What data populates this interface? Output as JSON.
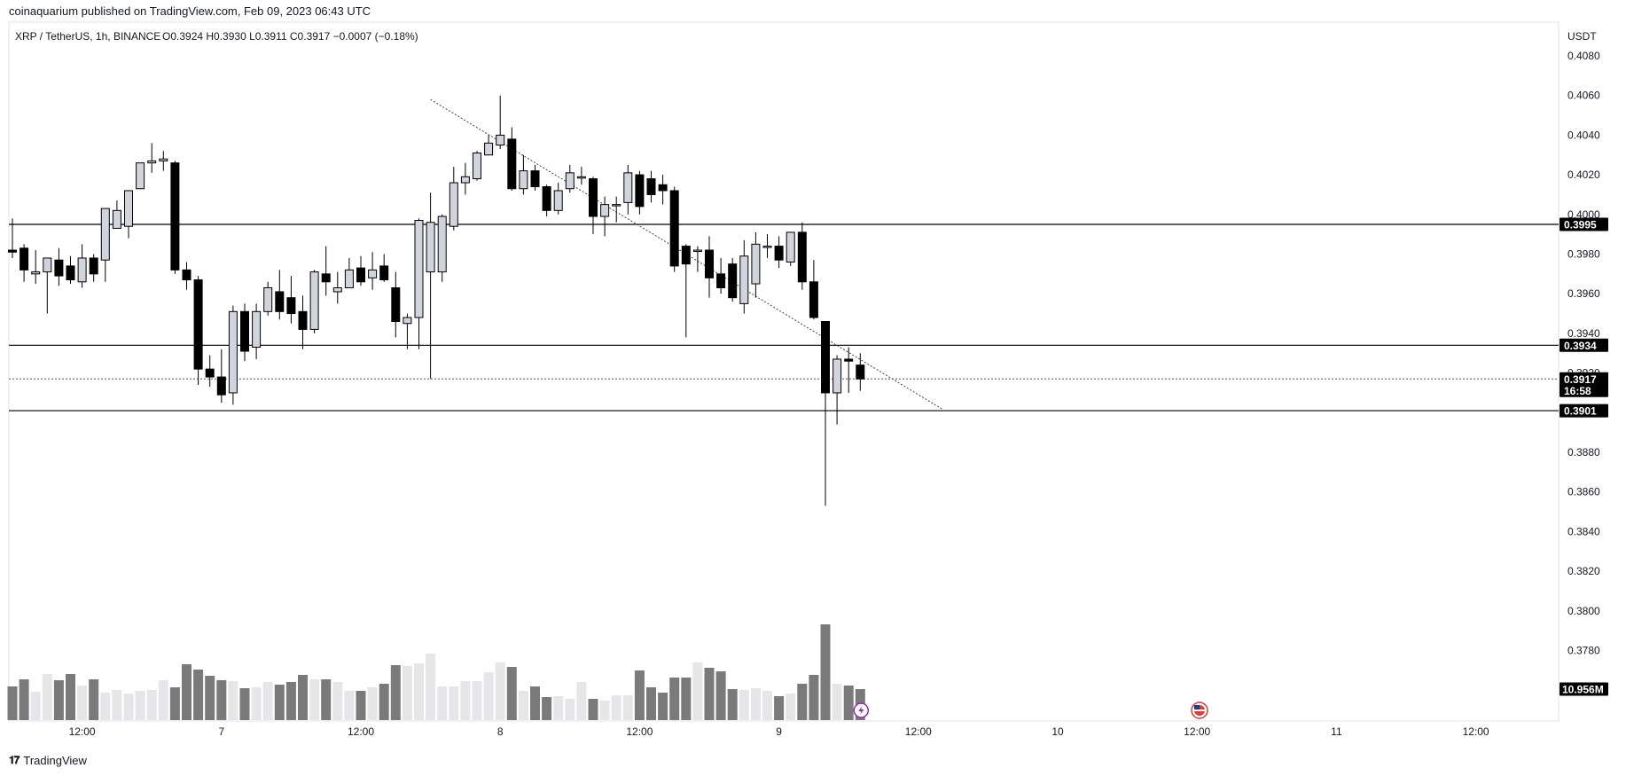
{
  "header": {
    "published": "coinaquarium published on TradingView.com, Feb 09, 2023 06:43 UTC"
  },
  "footer": {
    "brand": "TradingView",
    "logo": "tv-logo-icon"
  },
  "chart_data": {
    "type": "candlestick",
    "symbol": "XRP / TetherUS, 1h, BINANCE",
    "ohlc_label": "O0.3924 H0.3930 L0.3911 C0.3917 −0.0007 (−0.18%)",
    "currency": "USDT",
    "ylim": [
      0.3756,
      0.4085
    ],
    "y_ticks": [
      0.408,
      0.406,
      0.404,
      0.402,
      0.4,
      0.398,
      0.396,
      0.394,
      0.392,
      0.388,
      0.386,
      0.384,
      0.382,
      0.38,
      0.378,
      0.376
    ],
    "y_tick_labels": [
      "0.4080",
      "0.4060",
      "0.4040",
      "0.4020",
      "0.4000",
      "0.3980",
      "0.3960",
      "0.3940",
      "0.3920",
      "0.3880",
      "0.3860",
      "0.3840",
      "0.3820",
      "0.3800",
      "0.3780",
      "0.3760"
    ],
    "x_labels": [
      "12:00",
      "7",
      "12:00",
      "8",
      "12:00",
      "9",
      "12:00",
      "10",
      "12:00",
      "11",
      "12:00"
    ],
    "x_label_index": [
      6,
      18,
      30,
      42,
      54,
      66,
      78,
      90,
      102,
      114,
      126
    ],
    "horizontal_levels": [
      {
        "value": 0.3995,
        "label": "0.3995"
      },
      {
        "value": 0.3934,
        "label": "0.3934"
      },
      {
        "value": 0.3901,
        "label": "0.3901"
      }
    ],
    "current_price": {
      "value": 0.3917,
      "label": "0.3917",
      "countdown": "16:58"
    },
    "volume_label": "10.956M",
    "trendline": {
      "start": {
        "index": 36,
        "price": 0.4058
      },
      "end": {
        "index": 80,
        "price": 0.3902
      }
    },
    "colors": {
      "up": "#d1d4dc",
      "up_border": "#000000",
      "down": "#000000",
      "line": "#000000",
      "vol_up": "#e6e6e9",
      "vol_down": "#7a7a7a",
      "tag_bg": "#000000",
      "text": "#131722",
      "grid": "#ffffff"
    },
    "candles": [
      {
        "o": 0.3982,
        "h": 0.3998,
        "l": 0.3978,
        "c": 0.3981
      },
      {
        "o": 0.3983,
        "h": 0.3985,
        "l": 0.3966,
        "c": 0.3972
      },
      {
        "o": 0.397,
        "h": 0.3982,
        "l": 0.3965,
        "c": 0.3971
      },
      {
        "o": 0.3971,
        "h": 0.3978,
        "l": 0.395,
        "c": 0.3978
      },
      {
        "o": 0.3977,
        "h": 0.3983,
        "l": 0.3964,
        "c": 0.3969
      },
      {
        "o": 0.3974,
        "h": 0.3979,
        "l": 0.3965,
        "c": 0.3967
      },
      {
        "o": 0.3966,
        "h": 0.3985,
        "l": 0.3963,
        "c": 0.3978
      },
      {
        "o": 0.3978,
        "h": 0.398,
        "l": 0.3966,
        "c": 0.397
      },
      {
        "o": 0.3977,
        "h": 0.4003,
        "l": 0.3966,
        "c": 0.4003
      },
      {
        "o": 0.3993,
        "h": 0.4007,
        "l": 0.3993,
        "c": 0.4002
      },
      {
        "o": 0.3994,
        "h": 0.4011,
        "l": 0.3988,
        "c": 0.4012
      },
      {
        "o": 0.4013,
        "h": 0.4026,
        "l": 0.4013,
        "c": 0.4026
      },
      {
        "o": 0.4026,
        "h": 0.4036,
        "l": 0.4021,
        "c": 0.4027
      },
      {
        "o": 0.4027,
        "h": 0.4032,
        "l": 0.4022,
        "c": 0.4028
      },
      {
        "o": 0.4026,
        "h": 0.4027,
        "l": 0.397,
        "c": 0.3972
      },
      {
        "o": 0.3972,
        "h": 0.3976,
        "l": 0.3962,
        "c": 0.3967
      },
      {
        "o": 0.3967,
        "h": 0.3969,
        "l": 0.3914,
        "c": 0.3922
      },
      {
        "o": 0.3922,
        "h": 0.3929,
        "l": 0.3913,
        "c": 0.3918
      },
      {
        "o": 0.3918,
        "h": 0.3932,
        "l": 0.3905,
        "c": 0.3909
      },
      {
        "o": 0.391,
        "h": 0.3954,
        "l": 0.3904,
        "c": 0.3951
      },
      {
        "o": 0.3951,
        "h": 0.3955,
        "l": 0.3926,
        "c": 0.3931
      },
      {
        "o": 0.3933,
        "h": 0.3955,
        "l": 0.3927,
        "c": 0.3951
      },
      {
        "o": 0.3951,
        "h": 0.3966,
        "l": 0.3949,
        "c": 0.3963
      },
      {
        "o": 0.3961,
        "h": 0.3972,
        "l": 0.3947,
        "c": 0.3951
      },
      {
        "o": 0.3958,
        "h": 0.3969,
        "l": 0.3945,
        "c": 0.395
      },
      {
        "o": 0.3951,
        "h": 0.3959,
        "l": 0.3932,
        "c": 0.3942
      },
      {
        "o": 0.3942,
        "h": 0.3972,
        "l": 0.394,
        "c": 0.3971
      },
      {
        "o": 0.397,
        "h": 0.3984,
        "l": 0.3959,
        "c": 0.3966
      },
      {
        "o": 0.3961,
        "h": 0.3971,
        "l": 0.3955,
        "c": 0.3963
      },
      {
        "o": 0.3963,
        "h": 0.3978,
        "l": 0.3963,
        "c": 0.3972
      },
      {
        "o": 0.3973,
        "h": 0.3979,
        "l": 0.3964,
        "c": 0.3966
      },
      {
        "o": 0.3968,
        "h": 0.3981,
        "l": 0.3962,
        "c": 0.3972
      },
      {
        "o": 0.3974,
        "h": 0.398,
        "l": 0.3966,
        "c": 0.3967
      },
      {
        "o": 0.3963,
        "h": 0.3971,
        "l": 0.3938,
        "c": 0.3946
      },
      {
        "o": 0.3945,
        "h": 0.395,
        "l": 0.3932,
        "c": 0.3948
      },
      {
        "o": 0.3948,
        "h": 0.3998,
        "l": 0.3932,
        "c": 0.3997
      },
      {
        "o": 0.3971,
        "h": 0.4011,
        "l": 0.3917,
        "c": 0.3996
      },
      {
        "o": 0.3971,
        "h": 0.4,
        "l": 0.3966,
        "c": 0.3999
      },
      {
        "o": 0.3994,
        "h": 0.4024,
        "l": 0.3992,
        "c": 0.4016
      },
      {
        "o": 0.4016,
        "h": 0.4026,
        "l": 0.401,
        "c": 0.4019
      },
      {
        "o": 0.4018,
        "h": 0.4032,
        "l": 0.4017,
        "c": 0.4031
      },
      {
        "o": 0.403,
        "h": 0.404,
        "l": 0.403,
        "c": 0.4036
      },
      {
        "o": 0.4035,
        "h": 0.406,
        "l": 0.4033,
        "c": 0.404
      },
      {
        "o": 0.4038,
        "h": 0.4044,
        "l": 0.4012,
        "c": 0.4013
      },
      {
        "o": 0.4013,
        "h": 0.403,
        "l": 0.401,
        "c": 0.4022
      },
      {
        "o": 0.4022,
        "h": 0.4025,
        "l": 0.4012,
        "c": 0.4014
      },
      {
        "o": 0.4014,
        "h": 0.4015,
        "l": 0.3999,
        "c": 0.4002
      },
      {
        "o": 0.4002,
        "h": 0.4016,
        "l": 0.4,
        "c": 0.4012
      },
      {
        "o": 0.4013,
        "h": 0.4025,
        "l": 0.4011,
        "c": 0.4021
      },
      {
        "o": 0.4019,
        "h": 0.4024,
        "l": 0.4015,
        "c": 0.4019
      },
      {
        "o": 0.4018,
        "h": 0.4019,
        "l": 0.399,
        "c": 0.3999
      },
      {
        "o": 0.3999,
        "h": 0.4009,
        "l": 0.3989,
        "c": 0.4005
      },
      {
        "o": 0.4005,
        "h": 0.4009,
        "l": 0.3996,
        "c": 0.4005
      },
      {
        "o": 0.4006,
        "h": 0.4025,
        "l": 0.4,
        "c": 0.4021
      },
      {
        "o": 0.402,
        "h": 0.4022,
        "l": 0.4,
        "c": 0.4004
      },
      {
        "o": 0.4018,
        "h": 0.4022,
        "l": 0.4006,
        "c": 0.401
      },
      {
        "o": 0.4015,
        "h": 0.402,
        "l": 0.4005,
        "c": 0.4012
      },
      {
        "o": 0.4012,
        "h": 0.4014,
        "l": 0.3971,
        "c": 0.3974
      },
      {
        "o": 0.3984,
        "h": 0.3985,
        "l": 0.3938,
        "c": 0.3975
      },
      {
        "o": 0.3982,
        "h": 0.3984,
        "l": 0.3971,
        "c": 0.3982
      },
      {
        "o": 0.3982,
        "h": 0.3989,
        "l": 0.3958,
        "c": 0.3968
      },
      {
        "o": 0.397,
        "h": 0.3978,
        "l": 0.396,
        "c": 0.3963
      },
      {
        "o": 0.3975,
        "h": 0.3978,
        "l": 0.3956,
        "c": 0.3958
      },
      {
        "o": 0.3955,
        "h": 0.3987,
        "l": 0.395,
        "c": 0.3979
      },
      {
        "o": 0.3965,
        "h": 0.3991,
        "l": 0.3958,
        "c": 0.3985
      },
      {
        "o": 0.3984,
        "h": 0.399,
        "l": 0.3978,
        "c": 0.3984
      },
      {
        "o": 0.3984,
        "h": 0.3989,
        "l": 0.3973,
        "c": 0.3977
      },
      {
        "o": 0.3976,
        "h": 0.3991,
        "l": 0.3974,
        "c": 0.3991
      },
      {
        "o": 0.3991,
        "h": 0.3996,
        "l": 0.3962,
        "c": 0.3966
      },
      {
        "o": 0.3966,
        "h": 0.3977,
        "l": 0.3947,
        "c": 0.3948
      },
      {
        "o": 0.3946,
        "h": 0.3946,
        "l": 0.3853,
        "c": 0.391
      },
      {
        "o": 0.391,
        "h": 0.3929,
        "l": 0.3894,
        "c": 0.3927
      },
      {
        "o": 0.3927,
        "h": 0.3933,
        "l": 0.391,
        "c": 0.3926
      },
      {
        "o": 0.3924,
        "h": 0.393,
        "l": 0.3911,
        "c": 0.3917
      }
    ],
    "volumes": [
      0.38,
      0.46,
      0.32,
      0.52,
      0.45,
      0.52,
      0.39,
      0.46,
      0.31,
      0.34,
      0.3,
      0.33,
      0.34,
      0.45,
      0.37,
      0.63,
      0.57,
      0.5,
      0.45,
      0.44,
      0.36,
      0.37,
      0.43,
      0.4,
      0.43,
      0.51,
      0.46,
      0.46,
      0.43,
      0.33,
      0.33,
      0.37,
      0.41,
      0.62,
      0.61,
      0.64,
      0.75,
      0.38,
      0.38,
      0.44,
      0.44,
      0.54,
      0.65,
      0.6,
      0.33,
      0.38,
      0.26,
      0.27,
      0.24,
      0.43,
      0.24,
      0.22,
      0.28,
      0.28,
      0.56,
      0.37,
      0.31,
      0.48,
      0.48,
      0.65,
      0.59,
      0.55,
      0.35,
      0.34,
      0.36,
      0.33,
      0.27,
      0.3,
      0.41,
      0.51,
      1.08,
      0.41,
      0.39,
      0.35
    ]
  }
}
